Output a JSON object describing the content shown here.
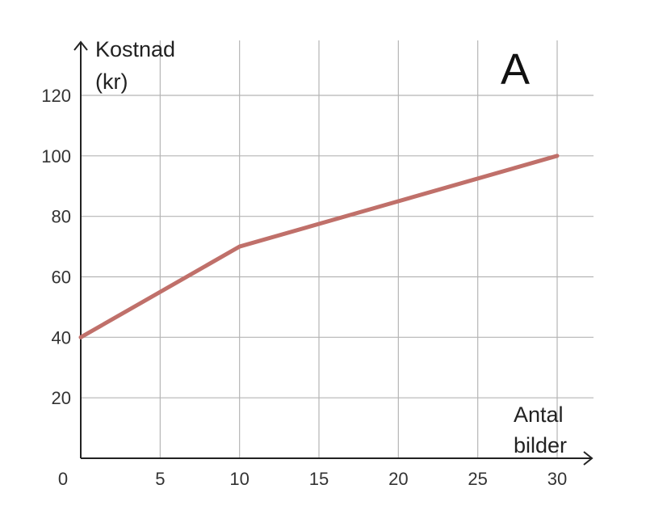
{
  "chart_data": {
    "type": "line",
    "panel_label": "A",
    "ylabel_lines": [
      "Kostnad",
      "(kr)"
    ],
    "xlabel_lines": [
      "Antal",
      "bilder"
    ],
    "x": [
      0,
      10,
      30
    ],
    "series": [
      {
        "values": [
          40,
          70,
          100
        ],
        "color": "#c0706a"
      }
    ],
    "xlim": [
      0,
      30
    ],
    "ylim": [
      0,
      120
    ],
    "x_ticks": [
      "0",
      "5",
      "10",
      "15",
      "20",
      "25",
      "30"
    ],
    "x_tick_values": [
      0,
      5,
      10,
      15,
      20,
      25,
      30
    ],
    "y_ticks": [
      "20",
      "40",
      "60",
      "80",
      "100",
      "120"
    ],
    "y_tick_values": [
      20,
      40,
      60,
      80,
      100,
      120
    ],
    "grid": true,
    "colors": {
      "grid": "#b5b5b5",
      "axis": "#222222"
    }
  }
}
